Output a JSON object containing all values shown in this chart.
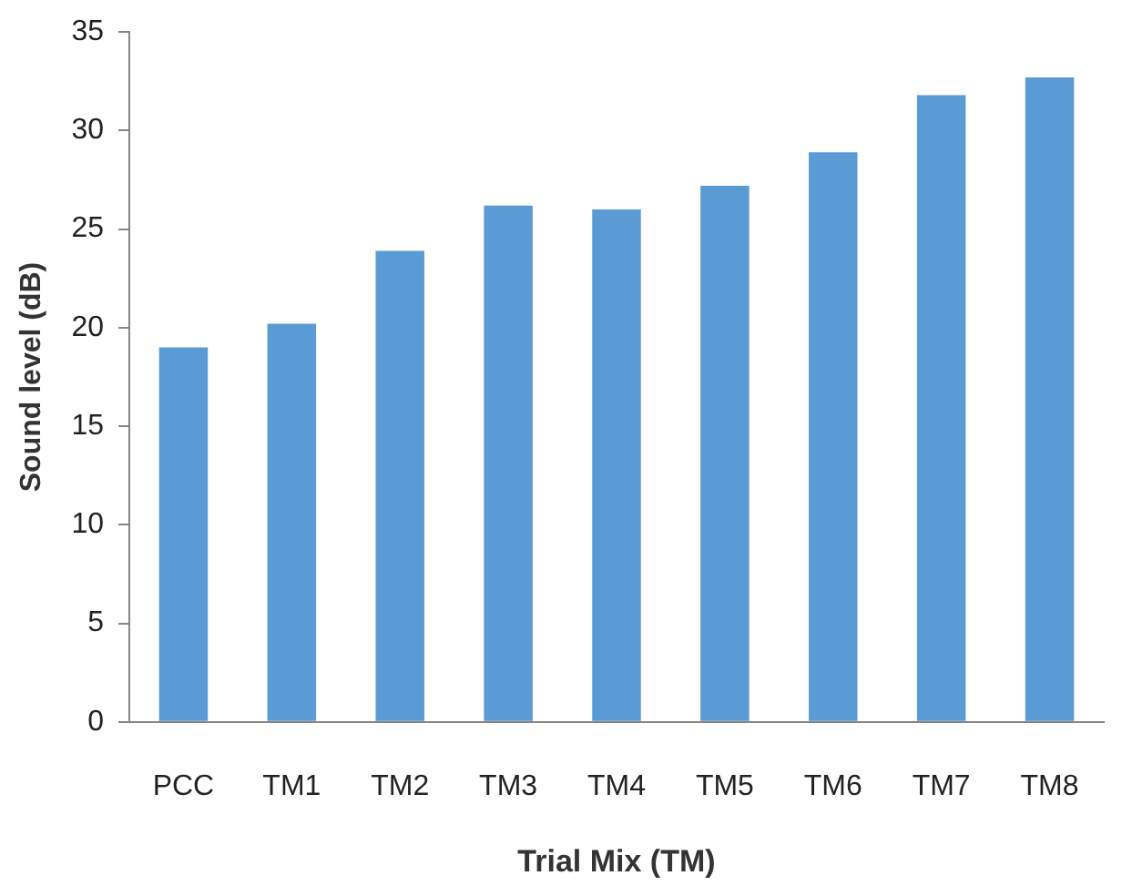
{
  "chart_data": {
    "type": "bar",
    "xlabel": "Trial Mix (TM)",
    "ylabel": "Sound level (dB)",
    "categories": [
      "PCC",
      "TM1",
      "TM2",
      "TM3",
      "TM4",
      "TM5",
      "TM6",
      "TM7",
      "TM8"
    ],
    "values": [
      19.0,
      20.2,
      23.9,
      26.2,
      26.0,
      27.2,
      28.9,
      31.8,
      32.7
    ],
    "color": "#5b9bd5",
    "ylim": [
      0,
      35
    ],
    "yticks": [
      0,
      5,
      10,
      15,
      20,
      25,
      30,
      35
    ],
    "grid": false,
    "legend": false
  }
}
